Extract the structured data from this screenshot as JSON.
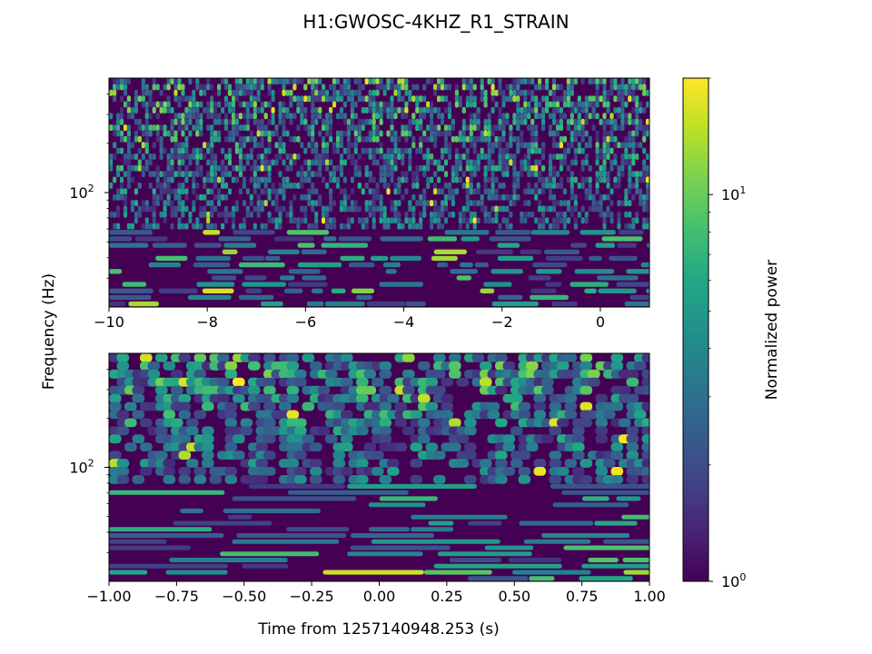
{
  "figure": {
    "title": "H1:GWOSC-4KHZ_R1_STRAIN",
    "ylabel": "Frequency (Hz)",
    "xlabel": "Time from 1257140948.253 (s)",
    "colorbar_label": "Normalized power"
  },
  "colors": {
    "viridis": [
      "#440154",
      "#482475",
      "#414487",
      "#355f8d",
      "#2a788e",
      "#21918c",
      "#22a884",
      "#44bf70",
      "#7ad151",
      "#bddf26",
      "#fde725"
    ],
    "axis": "#000000",
    "background": "#ffffff"
  },
  "chart_data": [
    {
      "type": "heatmap",
      "panel": "top",
      "x_range": [
        -10,
        1
      ],
      "x_ticks": [
        -10,
        -8,
        -6,
        -4,
        -2,
        0
      ],
      "x_tick_labels": [
        "−10",
        "−8",
        "−6",
        "−4",
        "−2",
        "0"
      ],
      "y_scale": "log",
      "y_range": [
        20,
        500
      ],
      "y_ticks": [
        100
      ],
      "y_tick_labels": [
        "10^2"
      ],
      "texture": "dense fine-grained speckle of normalized power with scattered bright cyan/yellow spots near 100-500 Hz and elongated blobs below 60 Hz"
    },
    {
      "type": "heatmap",
      "panel": "bottom",
      "x_range": [
        -1,
        1
      ],
      "x_ticks": [
        -1.0,
        -0.75,
        -0.5,
        -0.25,
        0.0,
        0.25,
        0.5,
        0.75,
        1.0
      ],
      "x_tick_labels": [
        "−1.00",
        "−0.75",
        "−0.50",
        "−0.25",
        "0.00",
        "0.25",
        "0.50",
        "0.75",
        "1.00"
      ],
      "y_scale": "log",
      "y_range": [
        20,
        500
      ],
      "y_ticks": [
        100
      ],
      "y_tick_labels": [
        "10^2"
      ],
      "texture": "zoomed spectrogram with broader blobs at high frequency and long horizontal streaks below 80 Hz"
    },
    {
      "type": "colorbar",
      "scale": "log",
      "range": [
        1,
        20
      ],
      "ticks": [
        1,
        10
      ],
      "tick_labels": [
        "10^0",
        "10^1"
      ],
      "colormap": "viridis",
      "label": "Normalized power"
    }
  ]
}
